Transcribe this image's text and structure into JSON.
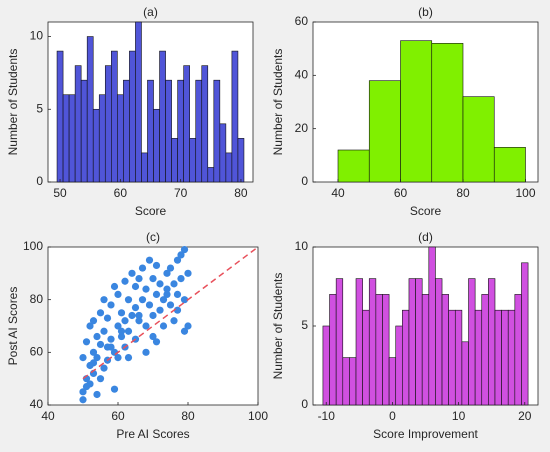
{
  "chart_data": [
    {
      "type": "histogram",
      "title": "(a)",
      "xlabel": "Score",
      "ylabel": "Number of Students",
      "color": "#5055d8",
      "bins": [
        49.5,
        50.5,
        51.5,
        52.5,
        53.5,
        54.5,
        55.5,
        56.5,
        57.5,
        58.5,
        59.5,
        60.5,
        61.5,
        62.5,
        63.5,
        64.5,
        65.5,
        66.5,
        67.5,
        68.5,
        69.5,
        70.5,
        71.5,
        72.5,
        73.5,
        74.5,
        75.5,
        76.5,
        77.5,
        78.5,
        79.5,
        80.5
      ],
      "values": [
        9,
        6,
        6,
        8,
        7,
        10,
        5,
        6,
        8,
        9,
        6,
        7,
        9,
        11,
        2,
        7,
        5,
        9,
        7,
        3,
        7,
        8,
        3,
        7,
        8,
        1,
        7,
        4,
        2,
        9,
        3
      ],
      "xlim": [
        48,
        82
      ],
      "xticks": [
        50,
        60,
        70,
        80
      ],
      "ylim": [
        0,
        11
      ],
      "yticks": [
        0,
        5,
        10
      ]
    },
    {
      "type": "histogram",
      "title": "(b)",
      "xlabel": "Score",
      "ylabel": "Number of Students",
      "color": "#80f000",
      "bins": [
        40,
        50,
        60,
        70,
        80,
        90,
        100
      ],
      "values": [
        12,
        38,
        53,
        52,
        32,
        13
      ],
      "xlim": [
        32,
        104
      ],
      "xticks": [
        40,
        60,
        80,
        100
      ],
      "ylim": [
        0,
        60
      ],
      "yticks": [
        0,
        20,
        40,
        60
      ]
    },
    {
      "type": "scatter",
      "title": "(c)",
      "xlabel": "Pre AI Scores",
      "ylabel": "Post AI Scores",
      "color": "#3a86e0",
      "x": [
        50,
        50,
        51,
        51,
        52,
        52,
        52,
        53,
        53,
        53,
        54,
        54,
        55,
        55,
        55,
        56,
        56,
        57,
        57,
        57,
        58,
        58,
        59,
        59,
        60,
        60,
        60,
        61,
        61,
        62,
        62,
        62,
        63,
        63,
        64,
        64,
        65,
        65,
        65,
        66,
        66,
        67,
        67,
        68,
        68,
        69,
        69,
        70,
        70,
        70,
        71,
        71,
        72,
        72,
        73,
        73,
        74,
        74,
        75,
        75,
        76,
        76,
        77,
        77,
        78,
        78,
        79,
        79,
        80,
        80,
        50,
        51,
        53,
        54,
        56,
        58,
        59,
        61,
        63,
        66,
        68,
        71,
        74,
        77,
        79
      ],
      "values": [
        45,
        58,
        50,
        64,
        55,
        70,
        48,
        60,
        72,
        52,
        66,
        58,
        75,
        63,
        50,
        68,
        80,
        57,
        73,
        62,
        78,
        65,
        85,
        60,
        70,
        82,
        58,
        75,
        66,
        87,
        72,
        62,
        80,
        68,
        90,
        74,
        77,
        85,
        65,
        88,
        72,
        80,
        92,
        70,
        84,
        78,
        95,
        74,
        88,
        66,
        82,
        93,
        76,
        86,
        80,
        70,
        90,
        84,
        78,
        92,
        86,
        72,
        95,
        82,
        88,
        97,
        80,
        99,
        70,
        90,
        42,
        47,
        56,
        44,
        54,
        62,
        46,
        68,
        58,
        74,
        60,
        64,
        82,
        76,
        68
      ],
      "reference_line": {
        "x": [
          50,
          100
        ],
        "values": [
          50,
          100
        ],
        "color": "#e8505b",
        "style": "dashed"
      },
      "xlim": [
        40,
        100
      ],
      "xticks": [
        40,
        60,
        80,
        100
      ],
      "ylim": [
        40,
        100
      ],
      "yticks": [
        40,
        60,
        80,
        100
      ]
    },
    {
      "type": "histogram",
      "title": "(d)",
      "xlabel": "Score Improvement",
      "ylabel": "Number of Students",
      "color": "#d050e0",
      "bins": [
        -10.5,
        -9.5,
        -8.5,
        -7.5,
        -6.5,
        -5.5,
        -4.5,
        -3.5,
        -2.5,
        -1.5,
        -0.5,
        0.5,
        1.5,
        2.5,
        3.5,
        4.5,
        5.5,
        6.5,
        7.5,
        8.5,
        9.5,
        10.5,
        11.5,
        12.5,
        13.5,
        14.5,
        15.5,
        16.5,
        17.5,
        18.5,
        19.5,
        20.5
      ],
      "values": [
        5,
        7,
        8,
        3,
        3,
        8,
        6,
        8,
        7,
        7,
        3,
        5,
        6,
        8,
        8,
        7,
        10,
        8,
        7,
        6,
        6,
        4,
        8,
        6,
        7,
        8,
        6,
        6,
        6,
        7,
        9
      ],
      "xlim": [
        -12,
        22
      ],
      "xticks": [
        -10,
        0,
        10,
        20
      ],
      "ylim": [
        0,
        10
      ],
      "yticks": [
        0,
        5,
        10
      ]
    }
  ]
}
